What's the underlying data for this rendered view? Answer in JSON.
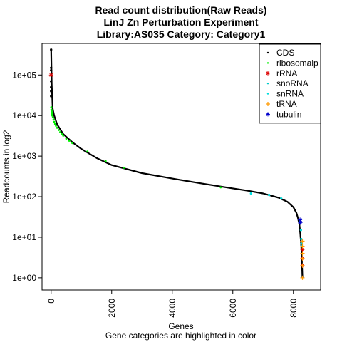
{
  "chart_data": {
    "type": "scatter",
    "title_lines": [
      "Read count distribution(Raw Reads)",
      "LinJ Zn Perturbation Experiment",
      "Library:AS035  Category: Category1"
    ],
    "xlabel": "Genes",
    "sublabel": "Gene categories are highlighted in color",
    "ylabel": "Readcounts in log2",
    "y_scale": "log",
    "xlim": [
      -300,
      8900
    ],
    "ylim": [
      0.5,
      600000
    ],
    "x_ticks": [
      0,
      2000,
      4000,
      6000,
      8000
    ],
    "x_tick_labels": [
      "0",
      "2000",
      "4000",
      "6000",
      "8000"
    ],
    "y_ticks": [
      1,
      10,
      100,
      1000,
      10000,
      100000
    ],
    "y_tick_labels": [
      "1e+00",
      "1e+01",
      "1e+02",
      "1e+03",
      "1e+04",
      "1e+05"
    ],
    "grid": false,
    "legend_position": "top-right",
    "curve": {
      "x": [
        0,
        20,
        50,
        100,
        200,
        400,
        700,
        1000,
        1500,
        2000,
        3000,
        4000,
        5000,
        6000,
        6500,
        7000,
        7500,
        7800,
        8000,
        8100,
        8150,
        8200,
        8230,
        8260,
        8280,
        8300
      ],
      "y": [
        420000,
        60000,
        15000,
        10000,
        6000,
        3500,
        2200,
        1500,
        900,
        600,
        380,
        280,
        210,
        160,
        140,
        120,
        95,
        75,
        55,
        40,
        30,
        20,
        12,
        6,
        3,
        1
      ]
    },
    "series": [
      {
        "name": "CDS",
        "color": "#000000",
        "marker": "dot",
        "x": [
          0,
          0,
          0,
          0,
          0,
          0,
          0
        ],
        "y": [
          420000,
          150000,
          130000,
          70000,
          50000,
          40000,
          30000
        ]
      },
      {
        "name": "ribosomalp",
        "color": "#00ee00",
        "marker": "dot",
        "x": [
          5,
          10,
          15,
          20,
          30,
          40,
          60,
          80,
          100,
          130,
          160,
          200,
          250,
          300,
          350,
          400,
          500,
          600,
          700,
          1200,
          1800,
          2400,
          5600
        ],
        "y": [
          16000,
          14000,
          13000,
          12000,
          11000,
          10000,
          9000,
          8000,
          7000,
          6200,
          5600,
          5000,
          4400,
          3900,
          3500,
          3200,
          2700,
          2400,
          2100,
          1300,
          750,
          520,
          170
        ]
      },
      {
        "name": "rRNA",
        "color": "#dd0000",
        "marker": "star",
        "x": [
          0,
          8300,
          8300,
          8300
        ],
        "y": [
          100000,
          5,
          3,
          2
        ]
      },
      {
        "name": "snoRNA",
        "color": "#00cccc",
        "marker": "dot",
        "x": [
          8260,
          8270,
          8280
        ],
        "y": [
          9,
          7,
          6
        ]
      },
      {
        "name": "snRNA",
        "color": "#00dddd",
        "marker": "dot",
        "x": [
          6600,
          7200,
          7600,
          8220,
          8250
        ],
        "y": [
          120,
          110,
          90,
          25,
          15
        ]
      },
      {
        "name": "tRNA",
        "color": "#ff9900",
        "marker": "plus",
        "x": [
          8300,
          8300,
          8300,
          8300,
          8300,
          8300
        ],
        "y": [
          8,
          6,
          4,
          3,
          2,
          1
        ]
      },
      {
        "name": "tubulin",
        "color": "#0000cc",
        "marker": "star",
        "x": [
          8220,
          8230
        ],
        "y": [
          27,
          23
        ]
      }
    ]
  }
}
